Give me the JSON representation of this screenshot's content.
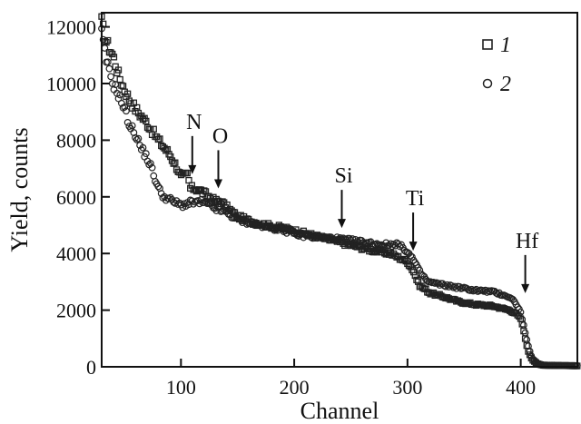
{
  "chart_data": {
    "type": "scatter",
    "title": "",
    "xlabel": "Channel",
    "ylabel": "Yield, counts",
    "xlim": [
      30,
      450
    ],
    "ylim": [
      0,
      12500
    ],
    "x_ticks": [
      100,
      200,
      300,
      400
    ],
    "x_tick_labels": [
      "100",
      "200",
      "300",
      "400"
    ],
    "y_ticks": [
      0,
      2000,
      4000,
      6000,
      8000,
      10000,
      12000
    ],
    "y_tick_labels": [
      "0",
      "2000",
      "4000",
      "6000",
      "8000",
      "10000",
      "12000"
    ],
    "grid": false,
    "legend_position": "top-right",
    "series": [
      {
        "name": "1",
        "marker": "square",
        "anchors": [
          [
            30,
            12200
          ],
          [
            33,
            11600
          ],
          [
            36,
            11300
          ],
          [
            40,
            11000
          ],
          [
            45,
            10300
          ],
          [
            50,
            9800
          ],
          [
            55,
            9400
          ],
          [
            60,
            9100
          ],
          [
            70,
            8600
          ],
          [
            80,
            8000
          ],
          [
            90,
            7500
          ],
          [
            97,
            7000
          ],
          [
            100,
            6700
          ],
          [
            106,
            6800
          ],
          [
            108,
            6300
          ],
          [
            112,
            6300
          ],
          [
            118,
            6200
          ],
          [
            125,
            6000
          ],
          [
            130,
            5850
          ],
          [
            135,
            5850
          ],
          [
            140,
            5650
          ],
          [
            150,
            5300
          ],
          [
            160,
            5150
          ],
          [
            175,
            5000
          ],
          [
            190,
            4900
          ],
          [
            200,
            4800
          ],
          [
            215,
            4650
          ],
          [
            230,
            4500
          ],
          [
            250,
            4300
          ],
          [
            270,
            4100
          ],
          [
            285,
            4000
          ],
          [
            295,
            3800
          ],
          [
            300,
            3700
          ],
          [
            305,
            3400
          ],
          [
            310,
            2900
          ],
          [
            315,
            2750
          ],
          [
            320,
            2600
          ],
          [
            330,
            2500
          ],
          [
            345,
            2300
          ],
          [
            360,
            2200
          ],
          [
            375,
            2150
          ],
          [
            390,
            2000
          ],
          [
            395,
            1900
          ],
          [
            400,
            1700
          ],
          [
            403,
            1200
          ],
          [
            406,
            600
          ],
          [
            410,
            250
          ],
          [
            415,
            100
          ],
          [
            420,
            50
          ],
          [
            450,
            30
          ]
        ]
      },
      {
        "name": "2",
        "marker": "circle",
        "anchors": [
          [
            30,
            11800
          ],
          [
            33,
            11000
          ],
          [
            36,
            10500
          ],
          [
            40,
            10000
          ],
          [
            45,
            9600
          ],
          [
            50,
            9100
          ],
          [
            55,
            8500
          ],
          [
            60,
            8200
          ],
          [
            65,
            7700
          ],
          [
            70,
            7400
          ],
          [
            75,
            6900
          ],
          [
            80,
            6300
          ],
          [
            85,
            6000
          ],
          [
            90,
            5900
          ],
          [
            100,
            5700
          ],
          [
            110,
            5800
          ],
          [
            120,
            5800
          ],
          [
            130,
            5600
          ],
          [
            140,
            5450
          ],
          [
            150,
            5200
          ],
          [
            160,
            5100
          ],
          [
            175,
            4950
          ],
          [
            190,
            4850
          ],
          [
            200,
            4700
          ],
          [
            215,
            4600
          ],
          [
            230,
            4550
          ],
          [
            250,
            4450
          ],
          [
            270,
            4350
          ],
          [
            283,
            4300
          ],
          [
            290,
            4350
          ],
          [
            298,
            4150
          ],
          [
            305,
            3800
          ],
          [
            310,
            3400
          ],
          [
            318,
            3000
          ],
          [
            330,
            2900
          ],
          [
            345,
            2800
          ],
          [
            360,
            2700
          ],
          [
            375,
            2650
          ],
          [
            388,
            2500
          ],
          [
            395,
            2300
          ],
          [
            400,
            1900
          ],
          [
            403,
            1400
          ],
          [
            406,
            800
          ],
          [
            410,
            300
          ],
          [
            415,
            120
          ],
          [
            420,
            60
          ],
          [
            450,
            40
          ]
        ]
      }
    ],
    "annotations": [
      {
        "label": "N",
        "x": 110,
        "y": 6800
      },
      {
        "label": "O",
        "x": 133,
        "y": 6300
      },
      {
        "label": "Si",
        "x": 242,
        "y": 4900
      },
      {
        "label": "Ti",
        "x": 305,
        "y": 4100
      },
      {
        "label": "Hf",
        "x": 404,
        "y": 2600
      }
    ]
  }
}
